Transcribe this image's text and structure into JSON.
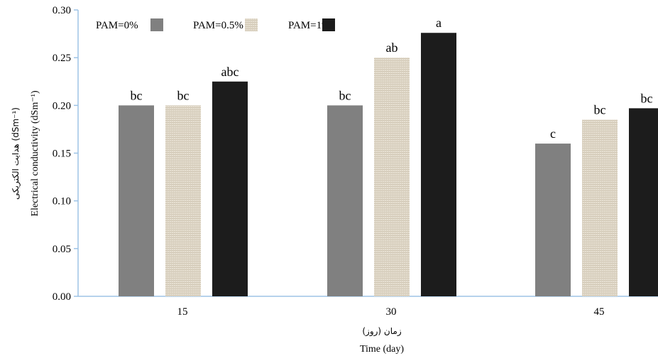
{
  "chart_data": {
    "type": "bar",
    "categories": [
      "15",
      "30",
      "45"
    ],
    "series": [
      {
        "name": "PAM=0%",
        "values": [
          0.2,
          0.2,
          0.16
        ],
        "letters": [
          "bc",
          "bc",
          "c"
        ],
        "color": "#808080"
      },
      {
        "name": "PAM=0.5%",
        "values": [
          0.2,
          0.25,
          0.185
        ],
        "letters": [
          "bc",
          "ab",
          "bc"
        ],
        "color": "#e4dccd"
      },
      {
        "name": "PAM=1%",
        "values": [
          0.225,
          0.276,
          0.197
        ],
        "letters": [
          "abc",
          "a",
          "bc"
        ],
        "color": "#1c1c1c"
      }
    ],
    "ylim": [
      0,
      0.3
    ],
    "yticks": [
      "0.00",
      "0.05",
      "0.10",
      "0.15",
      "0.20",
      "0.25",
      "0.30"
    ],
    "xlabel": "Time (day)",
    "xlabel_fa": "زمان (روز)",
    "ylabel": "Electrical conductivity (dSm⁻¹)",
    "ylabel_fa": "هدایت الکتریکی (dSm⁻¹)",
    "legend_position": "top-left",
    "grid": false
  }
}
